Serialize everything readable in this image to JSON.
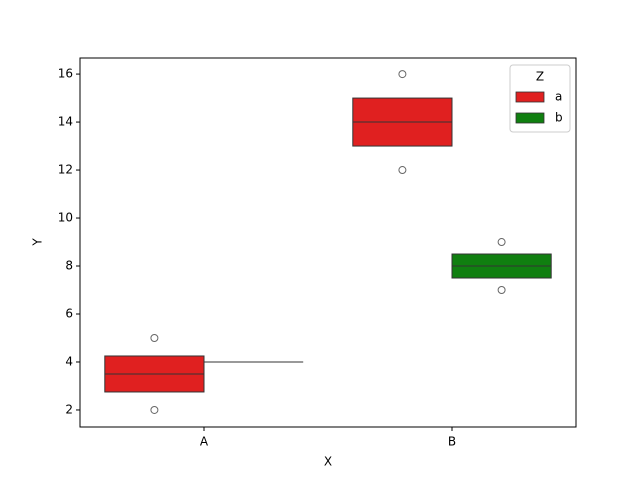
{
  "chart_data": {
    "type": "box",
    "x_label": "X",
    "y_label": "Y",
    "categories": [
      "A",
      "B"
    ],
    "series": [
      {
        "name": "a",
        "color": "#e02020",
        "boxes": [
          {
            "q1": 2.75,
            "median": 3.5,
            "q3": 4.25,
            "fliers": [
              2,
              5
            ]
          },
          {
            "q1": 13,
            "median": 14,
            "q3": 15,
            "fliers": [
              12,
              16
            ]
          }
        ]
      },
      {
        "name": "b",
        "color": "#107f10",
        "boxes": [
          {
            "q1": 4,
            "median": 4,
            "q3": 4,
            "fliers": []
          },
          {
            "q1": 7.5,
            "median": 8,
            "q3": 8.5,
            "fliers": [
              7,
              9
            ]
          }
        ]
      }
    ],
    "legend_title": "Z",
    "legend_position": "upper right",
    "ylim": [
      1.29,
      16.67
    ],
    "yticks": [
      2,
      4,
      6,
      8,
      10,
      12,
      14,
      16
    ]
  }
}
